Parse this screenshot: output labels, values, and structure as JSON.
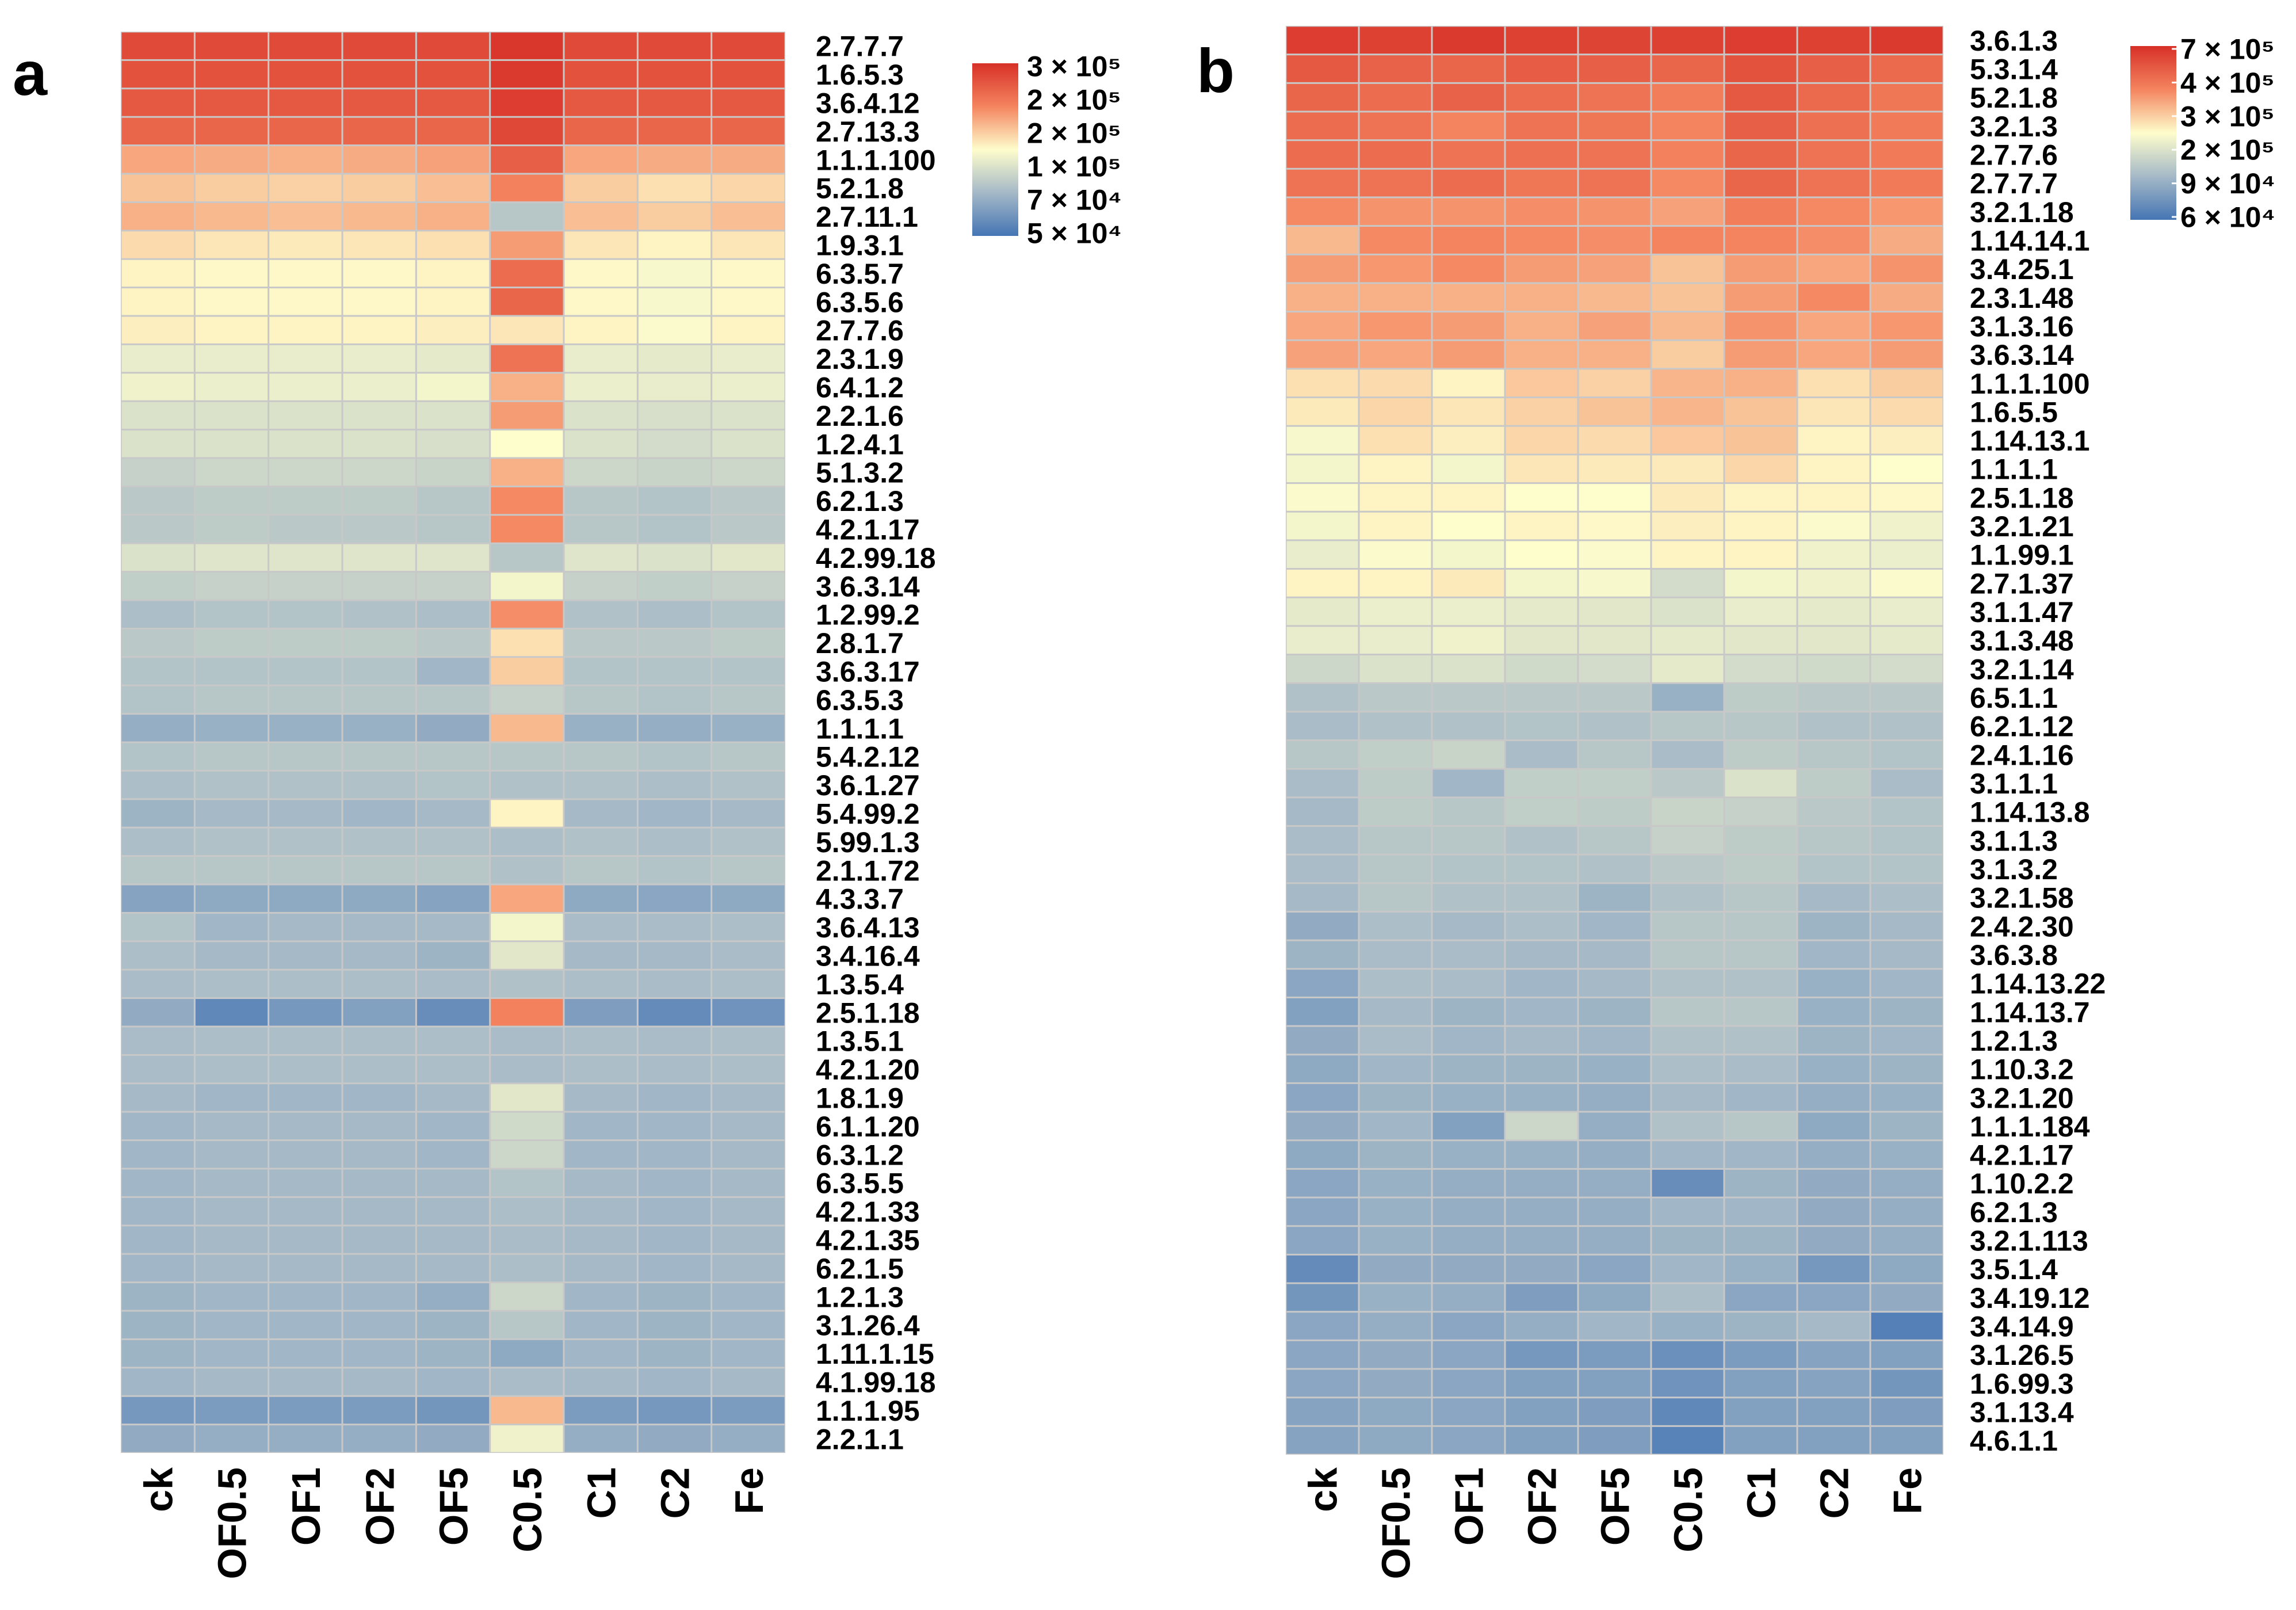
{
  "chart_data": [
    {
      "type": "heatmap",
      "panel_label": "a",
      "columns": [
        "ck",
        "OF0.5",
        "OF1",
        "OF2",
        "OF5",
        "C0.5",
        "C1",
        "C2",
        "Fe"
      ],
      "rows": [
        "2.7.7.7",
        "1.6.5.3",
        "3.6.4.12",
        "2.7.13.3",
        "1.1.1.100",
        "5.2.1.8",
        "2.7.11.1",
        "1.9.3.1",
        "6.3.5.7",
        "6.3.5.6",
        "2.7.7.6",
        "2.3.1.9",
        "6.4.1.2",
        "2.2.1.6",
        "1.2.4.1",
        "5.1.3.2",
        "6.2.1.3",
        "4.2.1.17",
        "4.2.99.18",
        "3.6.3.14",
        "1.2.99.2",
        "2.8.1.7",
        "3.6.3.17",
        "6.3.5.3",
        "1.1.1.1",
        "5.4.2.12",
        "3.6.1.27",
        "5.4.99.2",
        "5.99.1.3",
        "2.1.1.72",
        "4.3.3.7",
        "3.6.4.13",
        "3.4.16.4",
        "1.3.5.4",
        "2.5.1.18",
        "1.3.5.1",
        "4.2.1.20",
        "1.8.1.9",
        "6.1.1.20",
        "6.3.1.2",
        "6.3.5.5",
        "4.2.1.33",
        "4.2.1.35",
        "6.2.1.5",
        "1.2.1.3",
        "3.1.26.4",
        "1.11.1.15",
        "4.1.99.18",
        "1.1.1.95",
        "2.2.1.1"
      ],
      "values": [
        [
          0.92,
          0.92,
          0.92,
          0.92,
          0.92,
          0.98,
          0.92,
          0.92,
          0.92
        ],
        [
          0.9,
          0.9,
          0.9,
          0.9,
          0.9,
          0.97,
          0.9,
          0.9,
          0.9
        ],
        [
          0.88,
          0.88,
          0.88,
          0.88,
          0.88,
          0.96,
          0.88,
          0.88,
          0.88
        ],
        [
          0.84,
          0.84,
          0.84,
          0.84,
          0.84,
          0.93,
          0.84,
          0.84,
          0.84
        ],
        [
          0.68,
          0.67,
          0.66,
          0.67,
          0.69,
          0.86,
          0.68,
          0.67,
          0.67
        ],
        [
          0.62,
          0.6,
          0.59,
          0.6,
          0.63,
          0.76,
          0.6,
          0.56,
          0.58
        ],
        [
          0.66,
          0.64,
          0.63,
          0.64,
          0.66,
          0.3,
          0.63,
          0.6,
          0.63
        ],
        [
          0.57,
          0.55,
          0.54,
          0.55,
          0.56,
          0.7,
          0.55,
          0.52,
          0.55
        ],
        [
          0.52,
          0.51,
          0.51,
          0.51,
          0.52,
          0.82,
          0.51,
          0.48,
          0.51
        ],
        [
          0.52,
          0.51,
          0.51,
          0.51,
          0.52,
          0.84,
          0.51,
          0.48,
          0.51
        ],
        [
          0.53,
          0.52,
          0.52,
          0.52,
          0.53,
          0.55,
          0.52,
          0.49,
          0.52
        ],
        [
          0.44,
          0.44,
          0.44,
          0.44,
          0.43,
          0.8,
          0.44,
          0.43,
          0.44
        ],
        [
          0.46,
          0.45,
          0.45,
          0.45,
          0.47,
          0.66,
          0.45,
          0.44,
          0.45
        ],
        [
          0.4,
          0.4,
          0.4,
          0.4,
          0.4,
          0.7,
          0.4,
          0.39,
          0.4
        ],
        [
          0.4,
          0.4,
          0.4,
          0.4,
          0.39,
          0.5,
          0.4,
          0.38,
          0.4
        ],
        [
          0.34,
          0.36,
          0.36,
          0.36,
          0.35,
          0.66,
          0.36,
          0.35,
          0.36
        ],
        [
          0.31,
          0.32,
          0.32,
          0.32,
          0.3,
          0.74,
          0.3,
          0.29,
          0.31
        ],
        [
          0.31,
          0.32,
          0.31,
          0.31,
          0.3,
          0.74,
          0.3,
          0.29,
          0.31
        ],
        [
          0.4,
          0.41,
          0.41,
          0.41,
          0.41,
          0.3,
          0.41,
          0.4,
          0.42
        ],
        [
          0.33,
          0.34,
          0.34,
          0.34,
          0.34,
          0.47,
          0.34,
          0.33,
          0.34
        ],
        [
          0.27,
          0.29,
          0.29,
          0.28,
          0.27,
          0.73,
          0.28,
          0.27,
          0.29
        ],
        [
          0.31,
          0.32,
          0.32,
          0.32,
          0.31,
          0.56,
          0.31,
          0.31,
          0.32
        ],
        [
          0.29,
          0.29,
          0.29,
          0.29,
          0.24,
          0.6,
          0.29,
          0.29,
          0.29
        ],
        [
          0.29,
          0.3,
          0.3,
          0.3,
          0.3,
          0.34,
          0.3,
          0.29,
          0.3
        ],
        [
          0.21,
          0.22,
          0.22,
          0.22,
          0.2,
          0.64,
          0.22,
          0.21,
          0.22
        ],
        [
          0.29,
          0.3,
          0.3,
          0.3,
          0.3,
          0.3,
          0.3,
          0.29,
          0.3
        ],
        [
          0.27,
          0.28,
          0.28,
          0.28,
          0.29,
          0.28,
          0.28,
          0.27,
          0.28
        ],
        [
          0.23,
          0.25,
          0.25,
          0.24,
          0.25,
          0.52,
          0.25,
          0.24,
          0.25
        ],
        [
          0.27,
          0.28,
          0.28,
          0.28,
          0.28,
          0.27,
          0.28,
          0.27,
          0.28
        ],
        [
          0.3,
          0.3,
          0.3,
          0.3,
          0.3,
          0.28,
          0.3,
          0.29,
          0.3
        ],
        [
          0.17,
          0.19,
          0.19,
          0.19,
          0.17,
          0.68,
          0.19,
          0.18,
          0.19
        ],
        [
          0.29,
          0.24,
          0.25,
          0.25,
          0.25,
          0.47,
          0.26,
          0.26,
          0.27
        ],
        [
          0.27,
          0.25,
          0.25,
          0.25,
          0.23,
          0.42,
          0.25,
          0.25,
          0.26
        ],
        [
          0.26,
          0.27,
          0.27,
          0.27,
          0.26,
          0.28,
          0.27,
          0.26,
          0.27
        ],
        [
          0.2,
          0.07,
          0.13,
          0.16,
          0.09,
          0.76,
          0.15,
          0.08,
          0.11
        ],
        [
          0.26,
          0.27,
          0.27,
          0.27,
          0.27,
          0.26,
          0.27,
          0.26,
          0.27
        ],
        [
          0.26,
          0.27,
          0.27,
          0.27,
          0.27,
          0.26,
          0.27,
          0.26,
          0.27
        ],
        [
          0.25,
          0.24,
          0.24,
          0.24,
          0.25,
          0.42,
          0.25,
          0.24,
          0.25
        ],
        [
          0.24,
          0.25,
          0.25,
          0.25,
          0.24,
          0.37,
          0.24,
          0.24,
          0.25
        ],
        [
          0.24,
          0.25,
          0.25,
          0.25,
          0.24,
          0.36,
          0.24,
          0.24,
          0.25
        ],
        [
          0.24,
          0.25,
          0.25,
          0.25,
          0.25,
          0.29,
          0.25,
          0.24,
          0.25
        ],
        [
          0.24,
          0.25,
          0.25,
          0.25,
          0.25,
          0.27,
          0.25,
          0.24,
          0.25
        ],
        [
          0.24,
          0.25,
          0.25,
          0.25,
          0.25,
          0.26,
          0.25,
          0.24,
          0.25
        ],
        [
          0.24,
          0.25,
          0.25,
          0.25,
          0.25,
          0.27,
          0.25,
          0.24,
          0.25
        ],
        [
          0.23,
          0.24,
          0.24,
          0.24,
          0.21,
          0.36,
          0.24,
          0.23,
          0.24
        ],
        [
          0.23,
          0.24,
          0.24,
          0.24,
          0.23,
          0.3,
          0.24,
          0.23,
          0.24
        ],
        [
          0.23,
          0.24,
          0.24,
          0.24,
          0.23,
          0.19,
          0.24,
          0.23,
          0.24
        ],
        [
          0.24,
          0.25,
          0.25,
          0.25,
          0.24,
          0.26,
          0.25,
          0.24,
          0.25
        ],
        [
          0.13,
          0.14,
          0.14,
          0.14,
          0.12,
          0.64,
          0.14,
          0.13,
          0.14
        ],
        [
          0.2,
          0.21,
          0.21,
          0.21,
          0.2,
          0.46,
          0.21,
          0.2,
          0.21
        ]
      ],
      "legend": {
        "placement": "top-right",
        "labels": [
          "3 × 10⁵",
          "2 × 10⁵",
          "2 × 10⁵",
          "1 × 10⁵",
          "7 × 10⁴",
          "5 × 10⁴"
        ]
      }
    },
    {
      "type": "heatmap",
      "panel_label": "b",
      "columns": [
        "ck",
        "OF0.5",
        "OF1",
        "OF2",
        "OF5",
        "C0.5",
        "C1",
        "C2",
        "Fe"
      ],
      "rows": [
        "3.6.1.3",
        "5.3.1.4",
        "5.2.1.8",
        "3.2.1.3",
        "2.7.7.6",
        "2.7.7.7",
        "3.2.1.18",
        "1.14.14.1",
        "3.4.25.1",
        "2.3.1.48",
        "3.1.3.16",
        "3.6.3.14",
        "1.1.1.100",
        "1.6.5.5",
        "1.14.13.1",
        "1.1.1.1",
        "2.5.1.18",
        "3.2.1.21",
        "1.1.99.1",
        "2.7.1.37",
        "3.1.1.47",
        "3.1.3.48",
        "3.2.1.14",
        "6.5.1.1",
        "6.2.1.12",
        "2.4.1.16",
        "3.1.1.1",
        "1.14.13.8",
        "3.1.1.3",
        "3.1.3.2",
        "3.2.1.58",
        "2.4.2.30",
        "3.6.3.8",
        "1.14.13.22",
        "1.14.13.7",
        "1.2.1.3",
        "1.10.3.2",
        "3.2.1.20",
        "1.1.1.184",
        "4.2.1.17",
        "1.10.2.2",
        "6.2.1.3",
        "3.2.1.113",
        "3.5.1.4",
        "3.4.19.12",
        "3.4.14.9",
        "3.1.26.5",
        "1.6.99.3",
        "3.1.13.4",
        "4.6.1.1"
      ],
      "values": [
        [
          0.96,
          0.95,
          0.97,
          0.95,
          0.94,
          0.95,
          0.96,
          0.95,
          0.97
        ],
        [
          0.88,
          0.85,
          0.84,
          0.87,
          0.86,
          0.84,
          0.9,
          0.86,
          0.83
        ],
        [
          0.84,
          0.82,
          0.85,
          0.82,
          0.8,
          0.77,
          0.88,
          0.83,
          0.79
        ],
        [
          0.82,
          0.8,
          0.75,
          0.8,
          0.79,
          0.75,
          0.86,
          0.81,
          0.78
        ],
        [
          0.82,
          0.82,
          0.8,
          0.81,
          0.8,
          0.76,
          0.84,
          0.8,
          0.78
        ],
        [
          0.8,
          0.8,
          0.82,
          0.79,
          0.8,
          0.74,
          0.84,
          0.8,
          0.78
        ],
        [
          0.74,
          0.72,
          0.72,
          0.73,
          0.72,
          0.69,
          0.77,
          0.74,
          0.71
        ],
        [
          0.64,
          0.74,
          0.75,
          0.74,
          0.73,
          0.75,
          0.75,
          0.73,
          0.67
        ],
        [
          0.7,
          0.71,
          0.74,
          0.7,
          0.69,
          0.62,
          0.7,
          0.68,
          0.72
        ],
        [
          0.66,
          0.66,
          0.66,
          0.66,
          0.64,
          0.62,
          0.7,
          0.74,
          0.67
        ],
        [
          0.68,
          0.71,
          0.7,
          0.66,
          0.69,
          0.64,
          0.72,
          0.68,
          0.71
        ],
        [
          0.69,
          0.68,
          0.7,
          0.66,
          0.66,
          0.6,
          0.7,
          0.68,
          0.7
        ],
        [
          0.56,
          0.57,
          0.52,
          0.61,
          0.59,
          0.65,
          0.66,
          0.56,
          0.6
        ],
        [
          0.54,
          0.58,
          0.55,
          0.59,
          0.62,
          0.65,
          0.62,
          0.55,
          0.57
        ],
        [
          0.48,
          0.56,
          0.53,
          0.58,
          0.57,
          0.61,
          0.62,
          0.52,
          0.53
        ],
        [
          0.47,
          0.52,
          0.47,
          0.55,
          0.54,
          0.54,
          0.58,
          0.52,
          0.5
        ],
        [
          0.49,
          0.52,
          0.52,
          0.5,
          0.5,
          0.54,
          0.52,
          0.52,
          0.51
        ],
        [
          0.47,
          0.52,
          0.5,
          0.52,
          0.51,
          0.53,
          0.52,
          0.49,
          0.46
        ],
        [
          0.44,
          0.49,
          0.47,
          0.5,
          0.49,
          0.52,
          0.52,
          0.46,
          0.45
        ],
        [
          0.52,
          0.52,
          0.54,
          0.47,
          0.48,
          0.38,
          0.47,
          0.46,
          0.49
        ],
        [
          0.43,
          0.45,
          0.45,
          0.43,
          0.42,
          0.4,
          0.44,
          0.43,
          0.44
        ],
        [
          0.44,
          0.44,
          0.46,
          0.42,
          0.42,
          0.43,
          0.42,
          0.42,
          0.43
        ],
        [
          0.36,
          0.4,
          0.4,
          0.37,
          0.38,
          0.43,
          0.38,
          0.37,
          0.38
        ],
        [
          0.28,
          0.31,
          0.31,
          0.31,
          0.31,
          0.22,
          0.32,
          0.31,
          0.31
        ],
        [
          0.26,
          0.28,
          0.28,
          0.29,
          0.28,
          0.3,
          0.3,
          0.28,
          0.28
        ],
        [
          0.3,
          0.33,
          0.35,
          0.26,
          0.3,
          0.26,
          0.32,
          0.3,
          0.29
        ],
        [
          0.26,
          0.32,
          0.24,
          0.33,
          0.33,
          0.31,
          0.4,
          0.32,
          0.26
        ],
        [
          0.25,
          0.32,
          0.3,
          0.33,
          0.32,
          0.35,
          0.34,
          0.31,
          0.29
        ],
        [
          0.26,
          0.3,
          0.3,
          0.28,
          0.3,
          0.34,
          0.32,
          0.3,
          0.29
        ],
        [
          0.26,
          0.3,
          0.29,
          0.29,
          0.28,
          0.31,
          0.32,
          0.29,
          0.29
        ],
        [
          0.25,
          0.3,
          0.28,
          0.28,
          0.23,
          0.28,
          0.3,
          0.25,
          0.27
        ],
        [
          0.2,
          0.27,
          0.25,
          0.27,
          0.24,
          0.3,
          0.3,
          0.23,
          0.25
        ],
        [
          0.23,
          0.26,
          0.26,
          0.25,
          0.25,
          0.3,
          0.3,
          0.24,
          0.25
        ],
        [
          0.18,
          0.27,
          0.26,
          0.24,
          0.25,
          0.28,
          0.28,
          0.22,
          0.24
        ],
        [
          0.16,
          0.25,
          0.23,
          0.24,
          0.23,
          0.3,
          0.3,
          0.22,
          0.23
        ],
        [
          0.2,
          0.26,
          0.24,
          0.25,
          0.24,
          0.28,
          0.28,
          0.23,
          0.24
        ],
        [
          0.19,
          0.24,
          0.23,
          0.23,
          0.22,
          0.27,
          0.26,
          0.22,
          0.23
        ],
        [
          0.18,
          0.23,
          0.22,
          0.22,
          0.21,
          0.25,
          0.24,
          0.21,
          0.22
        ],
        [
          0.2,
          0.24,
          0.16,
          0.36,
          0.21,
          0.28,
          0.3,
          0.19,
          0.23
        ],
        [
          0.19,
          0.23,
          0.22,
          0.22,
          0.21,
          0.24,
          0.24,
          0.21,
          0.22
        ],
        [
          0.18,
          0.22,
          0.21,
          0.21,
          0.21,
          0.09,
          0.23,
          0.2,
          0.21
        ],
        [
          0.18,
          0.22,
          0.21,
          0.21,
          0.21,
          0.24,
          0.24,
          0.2,
          0.21
        ],
        [
          0.18,
          0.22,
          0.21,
          0.21,
          0.21,
          0.23,
          0.23,
          0.2,
          0.21
        ],
        [
          0.08,
          0.2,
          0.2,
          0.2,
          0.18,
          0.24,
          0.22,
          0.13,
          0.19
        ],
        [
          0.12,
          0.22,
          0.21,
          0.15,
          0.19,
          0.27,
          0.18,
          0.18,
          0.2
        ],
        [
          0.18,
          0.21,
          0.18,
          0.21,
          0.24,
          0.22,
          0.23,
          0.25,
          0.04
        ],
        [
          0.18,
          0.2,
          0.18,
          0.13,
          0.14,
          0.1,
          0.14,
          0.17,
          0.16
        ],
        [
          0.18,
          0.2,
          0.18,
          0.16,
          0.16,
          0.11,
          0.16,
          0.17,
          0.12
        ],
        [
          0.17,
          0.19,
          0.18,
          0.16,
          0.15,
          0.07,
          0.16,
          0.16,
          0.15
        ],
        [
          0.17,
          0.19,
          0.18,
          0.16,
          0.15,
          0.05,
          0.16,
          0.16,
          0.16
        ]
      ],
      "legend": {
        "placement": "top-right",
        "labels": [
          "7 × 10⁵",
          "4 × 10⁵",
          "3 × 10⁵",
          "2 × 10⁵",
          "9 × 10⁴",
          "6 × 10⁴"
        ]
      }
    }
  ]
}
